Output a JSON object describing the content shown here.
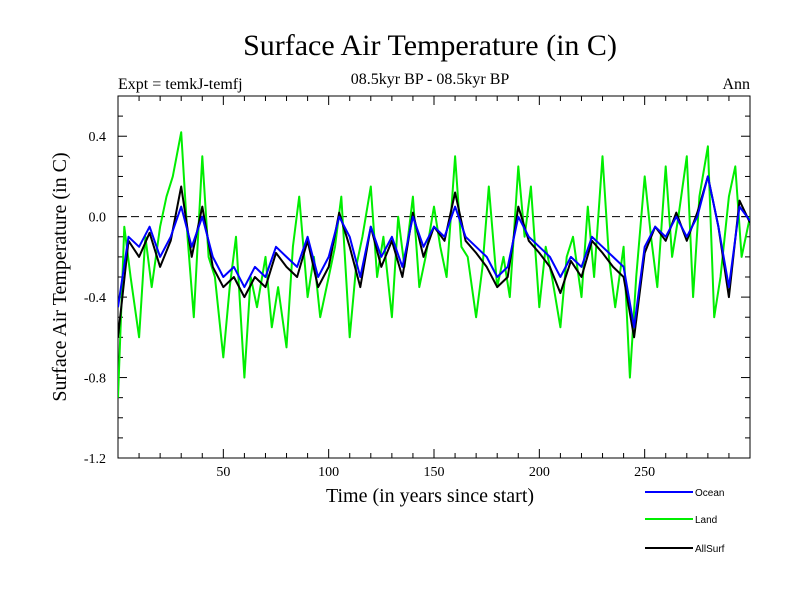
{
  "chart_data": {
    "type": "line",
    "title": "Surface Air Temperature (in C)",
    "subtitle_left": "Expt = temkJ-temfj",
    "subtitle_center": "08.5kyr BP - 08.5kyr BP",
    "subtitle_right": "Ann",
    "xlabel": "Time (in years since start)",
    "ylabel": "Surface Air Temperature (in C)",
    "xlim": [
      0,
      300
    ],
    "ylim": [
      -1.2,
      0.6
    ],
    "xticks": [
      50,
      100,
      150,
      200,
      250
    ],
    "xtick_labels": [
      "50",
      "100",
      "150",
      "200",
      "250"
    ],
    "yticks": [
      0.4,
      0.0,
      -0.4,
      -0.8,
      -1.2
    ],
    "ytick_labels": [
      "0.4",
      "0.0",
      "-0.4",
      "-0.8",
      "-1.2"
    ],
    "zero_line": 0.0,
    "legend_position": "bottom-right",
    "series": [
      {
        "name": "Ocean",
        "color": "#0000ff",
        "x": [
          0,
          5,
          10,
          15,
          20,
          25,
          30,
          35,
          40,
          45,
          50,
          55,
          60,
          65,
          70,
          75,
          80,
          85,
          90,
          95,
          100,
          105,
          110,
          115,
          120,
          125,
          130,
          135,
          140,
          145,
          150,
          155,
          160,
          165,
          170,
          175,
          180,
          185,
          190,
          195,
          200,
          205,
          210,
          215,
          220,
          225,
          230,
          235,
          240,
          245,
          250,
          255,
          260,
          265,
          270,
          275,
          280,
          285,
          290,
          295,
          300
        ],
        "values": [
          -0.45,
          -0.1,
          -0.15,
          -0.05,
          -0.2,
          -0.1,
          0.05,
          -0.15,
          0.0,
          -0.2,
          -0.3,
          -0.25,
          -0.35,
          -0.25,
          -0.3,
          -0.15,
          -0.2,
          -0.25,
          -0.1,
          -0.3,
          -0.2,
          0.0,
          -0.1,
          -0.3,
          -0.05,
          -0.2,
          -0.1,
          -0.25,
          0.0,
          -0.15,
          -0.05,
          -0.1,
          0.05,
          -0.1,
          -0.15,
          -0.2,
          -0.3,
          -0.25,
          0.0,
          -0.1,
          -0.15,
          -0.2,
          -0.3,
          -0.2,
          -0.25,
          -0.1,
          -0.15,
          -0.2,
          -0.25,
          -0.55,
          -0.15,
          -0.05,
          -0.1,
          0.0,
          -0.1,
          0.0,
          0.2,
          -0.05,
          -0.35,
          0.05,
          -0.02
        ]
      },
      {
        "name": "Land",
        "color": "#00ee00",
        "x": [
          0,
          3,
          6,
          10,
          13,
          16,
          20,
          23,
          26,
          30,
          33,
          36,
          40,
          43,
          46,
          50,
          53,
          56,
          60,
          63,
          66,
          70,
          73,
          76,
          80,
          83,
          86,
          90,
          93,
          96,
          100,
          103,
          106,
          110,
          113,
          116,
          120,
          123,
          126,
          130,
          133,
          136,
          140,
          143,
          146,
          150,
          153,
          156,
          160,
          163,
          166,
          170,
          173,
          176,
          180,
          183,
          186,
          190,
          193,
          196,
          200,
          203,
          206,
          210,
          213,
          216,
          220,
          223,
          226,
          230,
          233,
          236,
          240,
          243,
          246,
          250,
          253,
          256,
          260,
          263,
          266,
          270,
          273,
          276,
          280,
          283,
          286,
          290,
          293,
          296,
          300
        ],
        "values": [
          -0.9,
          -0.05,
          -0.3,
          -0.6,
          -0.1,
          -0.35,
          -0.05,
          0.1,
          0.2,
          0.42,
          -0.1,
          -0.5,
          0.3,
          -0.2,
          -0.3,
          -0.7,
          -0.35,
          -0.1,
          -0.8,
          -0.3,
          -0.45,
          -0.2,
          -0.55,
          -0.35,
          -0.65,
          -0.15,
          0.1,
          -0.4,
          -0.2,
          -0.5,
          -0.3,
          -0.15,
          0.1,
          -0.6,
          -0.25,
          -0.1,
          0.15,
          -0.3,
          -0.1,
          -0.5,
          0.0,
          -0.25,
          0.1,
          -0.35,
          -0.2,
          0.05,
          -0.15,
          -0.3,
          0.3,
          -0.15,
          -0.2,
          -0.5,
          -0.25,
          0.15,
          -0.35,
          -0.2,
          -0.4,
          0.25,
          -0.1,
          0.15,
          -0.45,
          -0.15,
          -0.3,
          -0.55,
          -0.2,
          -0.1,
          -0.4,
          0.05,
          -0.3,
          0.3,
          -0.2,
          -0.45,
          -0.15,
          -0.8,
          -0.3,
          0.2,
          -0.1,
          -0.35,
          0.25,
          -0.2,
          0.0,
          0.3,
          -0.4,
          0.1,
          0.35,
          -0.5,
          -0.3,
          0.1,
          0.25,
          -0.2,
          0.0
        ]
      },
      {
        "name": "AllSurf",
        "color": "#000000",
        "x": [
          0,
          5,
          10,
          15,
          20,
          25,
          30,
          35,
          40,
          45,
          50,
          55,
          60,
          65,
          70,
          75,
          80,
          85,
          90,
          95,
          100,
          105,
          110,
          115,
          120,
          125,
          130,
          135,
          140,
          145,
          150,
          155,
          160,
          165,
          170,
          175,
          180,
          185,
          190,
          195,
          200,
          205,
          210,
          215,
          220,
          225,
          230,
          235,
          240,
          245,
          250,
          255,
          260,
          265,
          270,
          275,
          280,
          285,
          290,
          295,
          300
        ],
        "values": [
          -0.6,
          -0.12,
          -0.2,
          -0.08,
          -0.25,
          -0.12,
          0.15,
          -0.2,
          0.05,
          -0.25,
          -0.35,
          -0.3,
          -0.4,
          -0.3,
          -0.35,
          -0.18,
          -0.25,
          -0.3,
          -0.12,
          -0.35,
          -0.25,
          0.02,
          -0.15,
          -0.35,
          -0.05,
          -0.25,
          -0.12,
          -0.3,
          0.02,
          -0.2,
          -0.05,
          -0.12,
          0.12,
          -0.12,
          -0.18,
          -0.25,
          -0.35,
          -0.3,
          0.05,
          -0.12,
          -0.18,
          -0.25,
          -0.38,
          -0.22,
          -0.3,
          -0.12,
          -0.18,
          -0.25,
          -0.3,
          -0.6,
          -0.18,
          -0.05,
          -0.12,
          0.02,
          -0.12,
          0.02,
          0.2,
          -0.05,
          -0.4,
          0.08,
          -0.03
        ]
      }
    ]
  }
}
